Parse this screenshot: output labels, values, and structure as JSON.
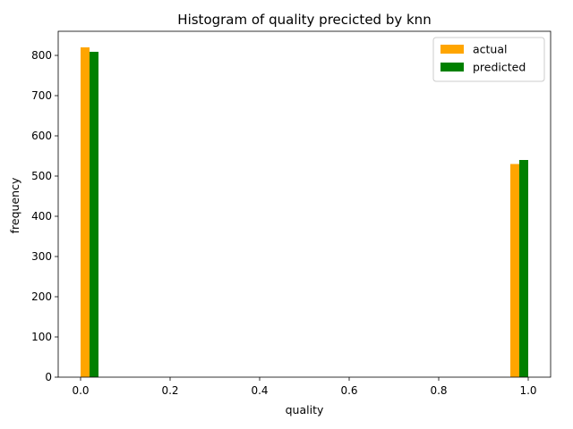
{
  "chart_data": {
    "type": "bar",
    "title": "Histogram of quality precicted by knn",
    "xlabel": "quality",
    "ylabel": "frequency",
    "xlim": [
      -0.05,
      1.05
    ],
    "ylim": [
      0,
      860
    ],
    "xticks": [
      0.0,
      0.2,
      0.4,
      0.6,
      0.8,
      1.0
    ],
    "xtick_labels": [
      "0.0",
      "0.2",
      "0.4",
      "0.6",
      "0.8",
      "1.0"
    ],
    "yticks": [
      0,
      100,
      200,
      300,
      400,
      500,
      600,
      700,
      800
    ],
    "ytick_labels": [
      "0",
      "100",
      "200",
      "300",
      "400",
      "500",
      "600",
      "700",
      "800"
    ],
    "grid": false,
    "legend_position": "top-right",
    "series": [
      {
        "name": "actual",
        "color": "#ffa500",
        "bars": [
          {
            "x0": 0.0,
            "x1": 0.02,
            "value": 820
          },
          {
            "x0": 0.96,
            "x1": 0.98,
            "value": 530
          }
        ]
      },
      {
        "name": "predicted",
        "color": "#008000",
        "bars": [
          {
            "x0": 0.02,
            "x1": 0.04,
            "value": 809
          },
          {
            "x0": 0.98,
            "x1": 1.0,
            "value": 540
          }
        ]
      }
    ]
  }
}
